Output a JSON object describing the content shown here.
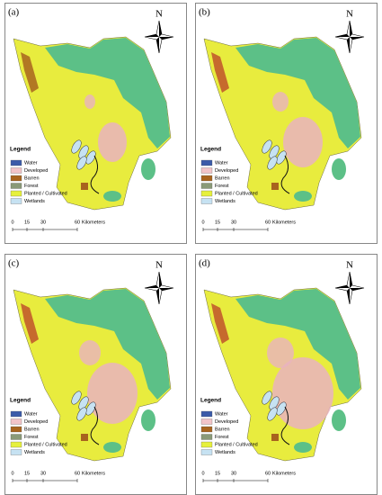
{
  "panels": [
    {
      "label": "(a)",
      "north": "N",
      "legend": {
        "title": "Legend",
        "items": [
          {
            "label": "Water",
            "color": "#3b5ba9"
          },
          {
            "label": "Developed",
            "color": "#f2c4c8"
          },
          {
            "label": "Barren",
            "color": "#a8641e"
          },
          {
            "label": "Forest",
            "color": "#8a9a78"
          },
          {
            "label": "Planted / Cultivated",
            "color": "#e6f03c"
          },
          {
            "label": "Wetlands",
            "color": "#c6e2f2"
          }
        ]
      },
      "scale": {
        "ticks": [
          "0",
          "15",
          "30",
          "60"
        ],
        "unit": "Kilometers"
      }
    },
    {
      "label": "(b)",
      "north": "N",
      "legend": {
        "title": "Legend",
        "items": [
          {
            "label": "Water",
            "color": "#3b5ba9"
          },
          {
            "label": "Developed",
            "color": "#f2c4c8"
          },
          {
            "label": "Barren",
            "color": "#a8641e"
          },
          {
            "label": "Forest",
            "color": "#8a9a78"
          },
          {
            "label": "Planted / Cultivated",
            "color": "#e6f03c"
          },
          {
            "label": "Wetlands",
            "color": "#c6e2f2"
          }
        ]
      },
      "scale": {
        "ticks": [
          "0",
          "15",
          "30",
          "60"
        ],
        "unit": "Kilometers"
      }
    },
    {
      "label": "(c)",
      "north": "N",
      "legend": {
        "title": "Legend",
        "items": [
          {
            "label": "Water",
            "color": "#3b5ba9"
          },
          {
            "label": "Developed",
            "color": "#f2c4c8"
          },
          {
            "label": "Barren",
            "color": "#a8641e"
          },
          {
            "label": "Forest",
            "color": "#8a9a78"
          },
          {
            "label": "Planted / Cultivated",
            "color": "#e6f03c"
          },
          {
            "label": "Wetlands",
            "color": "#c6e2f2"
          }
        ]
      },
      "scale": {
        "ticks": [
          "0",
          "15",
          "30",
          "60"
        ],
        "unit": "Kilometers"
      }
    },
    {
      "label": "(d)",
      "north": "N",
      "legend": {
        "title": "Legend",
        "items": [
          {
            "label": "Water",
            "color": "#3b5ba9"
          },
          {
            "label": "Developed",
            "color": "#f2c4c8"
          },
          {
            "label": "Barren",
            "color": "#a8641e"
          },
          {
            "label": "Forest",
            "color": "#8a9a78"
          },
          {
            "label": "Planted / Cultivated",
            "color": "#e6f03c"
          },
          {
            "label": "Wetlands",
            "color": "#c6e2f2"
          }
        ]
      },
      "scale": {
        "ticks": [
          "0",
          "15",
          "30",
          "60"
        ],
        "unit": "Kilometers"
      }
    }
  ]
}
